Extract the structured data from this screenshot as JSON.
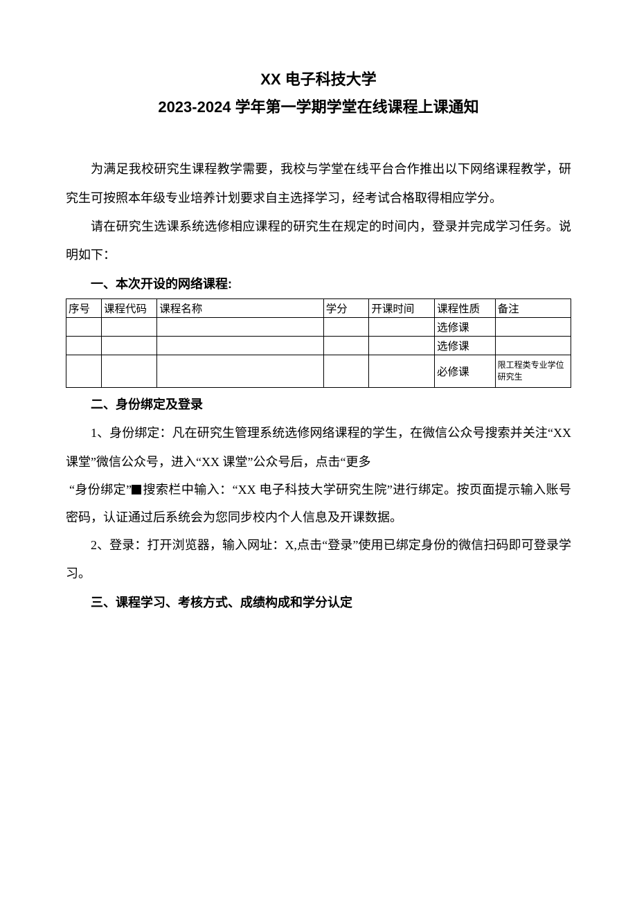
{
  "title": {
    "line1": "XX 电子科技大学",
    "line2": "2023-2024 学年第一学期学堂在线课程上课通知"
  },
  "intro": {
    "p1": "为满足我校研究生课程教学需要，我校与学堂在线平台合作推出以下网络课程教学，研究生可按照本年级专业培养计划要求自主选择学习，经考试合格取得相应学分。",
    "p2": "请在研究生选课系统选修相应课程的研究生在规定的时间内，登录并完成学习任务。说明如下："
  },
  "section1": {
    "heading": "一、本次开设的网络课程:",
    "table": {
      "headers": {
        "seq": "序号",
        "code": "课程代码",
        "name": "课程名称",
        "credit": "学分",
        "time": "开课时间",
        "type": "课程性质",
        "remark": "备注"
      },
      "rows": [
        {
          "seq": "",
          "code": "",
          "name": "",
          "credit": "",
          "time": "",
          "type": "选修课",
          "remark": ""
        },
        {
          "seq": "",
          "code": "",
          "name": "",
          "credit": "",
          "time": "",
          "type": "选修课",
          "remark": ""
        },
        {
          "seq": "",
          "code": "",
          "name": "",
          "credit": "",
          "time": "",
          "type": "必修课",
          "remark": "限工程类专业学位研究生"
        }
      ]
    }
  },
  "section2": {
    "heading": "二、身份绑定及登录",
    "p1a": "1、身份绑定：凡在研究生管理系统选修网络课程的学生，在微信公众号搜索并关注“XX 课堂”微信公众号，进入“XX 课堂”公众号后，点击“更多",
    "p1b_prefix": "“身份绑定”",
    "p1b_suffix": "搜索栏中输入：“XX 电子科技大学研究生院”进行绑定。按页面提示输入账号密码，认证通过后系统会为您同步校内个人信息及开课数据。",
    "p2": "2、登录：打开浏览器，输入网址：X,点击“登录”使用已绑定身份的微信扫码即可登录学习。"
  },
  "section3": {
    "heading": "三、课程学习、考核方式、成绩构成和学分认定"
  }
}
